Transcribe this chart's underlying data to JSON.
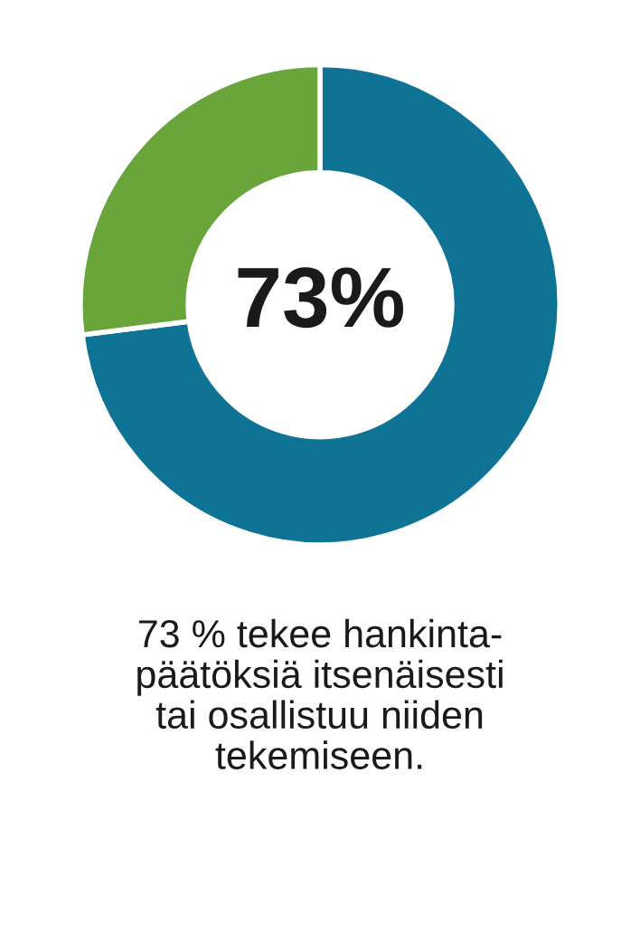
{
  "chart_data": {
    "type": "donut",
    "categories": [
      null,
      null
    ],
    "values": [
      73,
      27
    ],
    "colors": [
      "#0f7395",
      "#6aa53c"
    ],
    "value_labels": [
      "73%",
      null
    ],
    "annotations": [
      "73 % tekee hankinta-\npäätöksiä itsenäisesti\ntai osallistuu niiden\ntekemiseen."
    ]
  }
}
